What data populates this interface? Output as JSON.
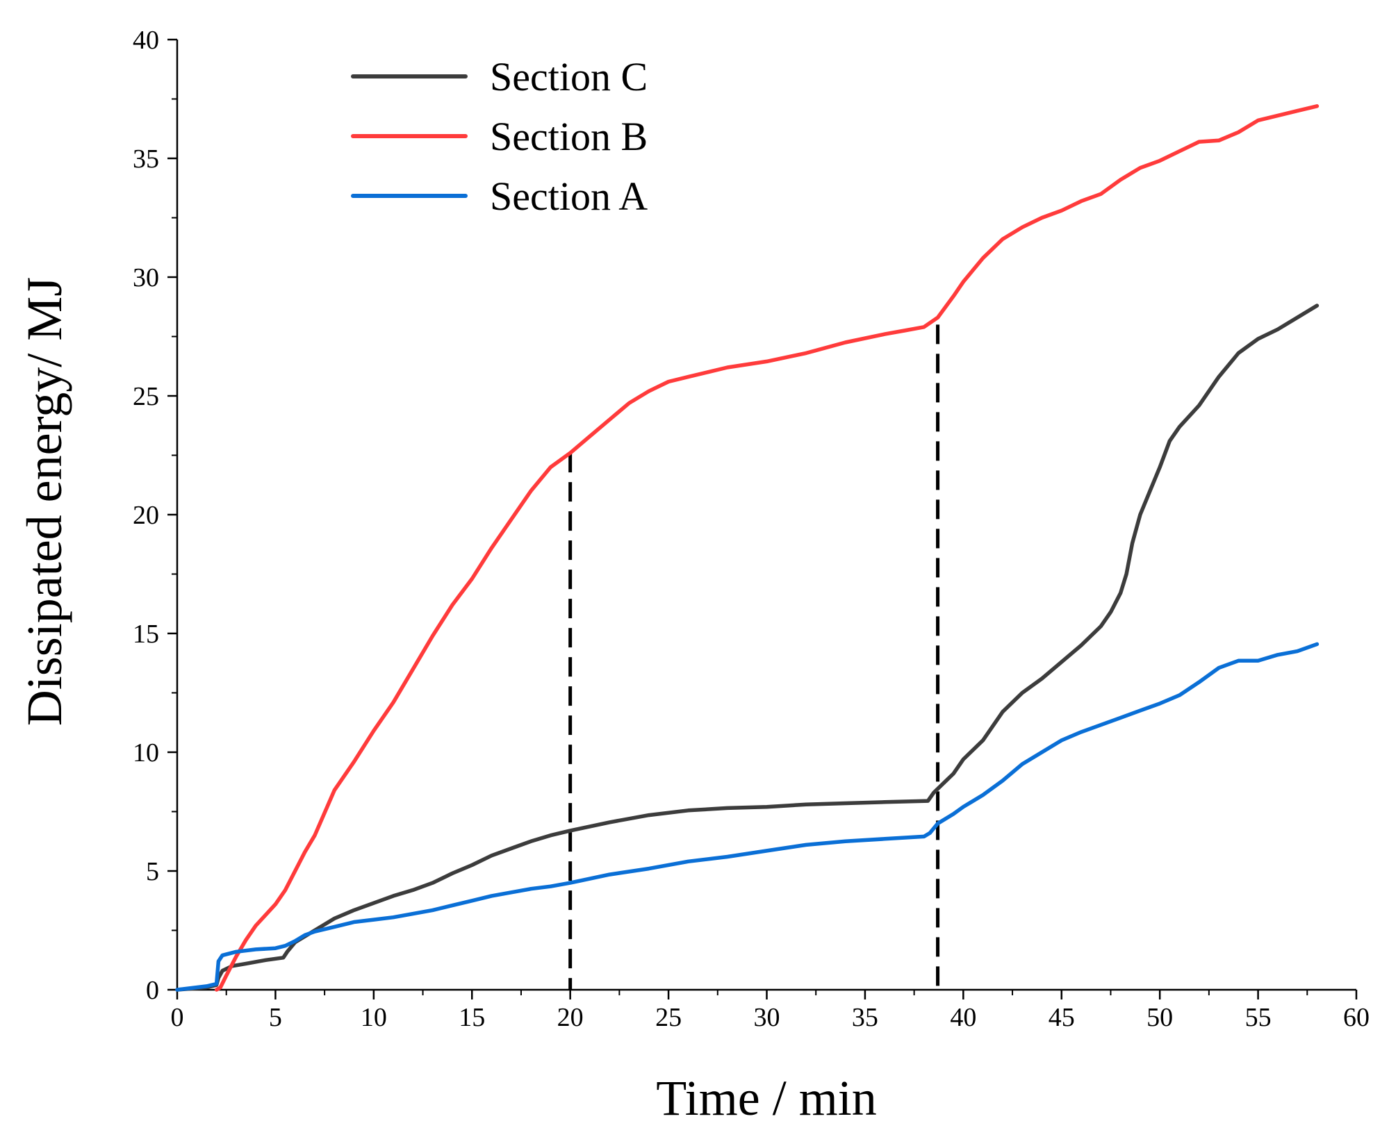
{
  "chart_data": {
    "type": "line",
    "title": "",
    "xlabel": "Time / min",
    "ylabel": "Dissipated energy/ MJ",
    "xlim": [
      0,
      60
    ],
    "ylim": [
      0,
      40
    ],
    "xticks": [
      0,
      5,
      10,
      15,
      20,
      25,
      30,
      35,
      40,
      45,
      50,
      55,
      60
    ],
    "yticks": [
      0,
      5,
      10,
      15,
      20,
      25,
      30,
      35,
      40
    ],
    "xtick_labels": [
      "0",
      "5",
      "10",
      "15",
      "20",
      "25",
      "30",
      "35",
      "40",
      "45",
      "50",
      "55",
      "60"
    ],
    "ytick_labels": [
      "0",
      "5",
      "10",
      "15",
      "20",
      "25",
      "30",
      "35",
      "40"
    ],
    "grid": false,
    "legend_position": "top-left",
    "vertical_markers": [
      {
        "x": 20,
        "y_top": 22.6,
        "style": "dashed"
      },
      {
        "x": 38.7,
        "y_top": 28.0,
        "style": "dashed"
      }
    ],
    "series": [
      {
        "name": "Section C",
        "color": "#3c3c3c",
        "x": [
          0,
          1.5,
          2.0,
          2.1,
          2.3,
          2.8,
          3.5,
          4.5,
          5.4,
          5.6,
          6.0,
          7.0,
          8.0,
          9.0,
          10.0,
          11.0,
          12.0,
          13.0,
          14.0,
          15.0,
          16.0,
          17.0,
          18.0,
          19.0,
          20.0,
          22.0,
          24.0,
          26.0,
          28.0,
          30.0,
          32.0,
          34.0,
          36.0,
          38.2,
          38.5,
          39.0,
          39.5,
          40.0,
          41.0,
          42.0,
          43.0,
          44.0,
          45.0,
          46.0,
          47.0,
          47.5,
          48.0,
          48.3,
          48.6,
          49.0,
          49.5,
          50.0,
          50.5,
          51.0,
          52.0,
          53.0,
          54.0,
          55.0,
          56.0,
          57.0,
          58.0
        ],
        "values": [
          0,
          0.1,
          0.2,
          0.5,
          0.8,
          1.0,
          1.1,
          1.25,
          1.35,
          1.6,
          2.0,
          2.5,
          3.0,
          3.35,
          3.65,
          3.95,
          4.2,
          4.5,
          4.9,
          5.25,
          5.65,
          5.95,
          6.25,
          6.5,
          6.7,
          7.05,
          7.35,
          7.55,
          7.65,
          7.7,
          7.8,
          7.85,
          7.9,
          7.95,
          8.3,
          8.7,
          9.1,
          9.7,
          10.5,
          11.7,
          12.5,
          13.1,
          13.8,
          14.5,
          15.3,
          15.9,
          16.7,
          17.5,
          18.8,
          20.0,
          21.0,
          22.0,
          23.1,
          23.7,
          24.6,
          25.8,
          26.8,
          27.4,
          27.8,
          28.3,
          28.8
        ]
      },
      {
        "name": "Section B",
        "color": "#ff3b3b",
        "x": [
          2.0,
          2.2,
          2.5,
          3.0,
          3.5,
          4.0,
          5.0,
          5.5,
          6.0,
          6.5,
          7.0,
          8.0,
          9.0,
          10.0,
          11.0,
          12.0,
          13.0,
          14.0,
          15.0,
          16.0,
          17.0,
          18.0,
          19.0,
          20.0,
          21.0,
          22.0,
          23.0,
          24.0,
          25.0,
          26.0,
          27.0,
          28.0,
          30.0,
          32.0,
          34.0,
          36.0,
          37.0,
          38.0,
          38.7,
          39.5,
          40.0,
          41.0,
          42.0,
          43.0,
          44.0,
          45.0,
          46.0,
          47.0,
          48.0,
          49.0,
          50.0,
          51.0,
          52.0,
          53.0,
          54.0,
          55.0,
          56.0,
          57.0,
          58.0
        ],
        "values": [
          0,
          0.1,
          0.6,
          1.4,
          2.1,
          2.7,
          3.6,
          4.2,
          5.0,
          5.8,
          6.5,
          8.4,
          9.6,
          10.9,
          12.1,
          13.5,
          14.9,
          16.2,
          17.3,
          18.6,
          19.8,
          21.0,
          22.0,
          22.6,
          23.3,
          24.0,
          24.7,
          25.2,
          25.6,
          25.8,
          26.0,
          26.2,
          26.45,
          26.8,
          27.25,
          27.6,
          27.75,
          27.9,
          28.3,
          29.2,
          29.8,
          30.8,
          31.6,
          32.1,
          32.5,
          32.8,
          33.2,
          33.5,
          34.1,
          34.6,
          34.9,
          35.3,
          35.7,
          35.75,
          36.1,
          36.6,
          36.8,
          37.0,
          37.2
        ]
      },
      {
        "name": "Section A",
        "color": "#0a6fd6",
        "x": [
          0,
          1.5,
          2.0,
          2.1,
          2.3,
          3.0,
          4.0,
          5.0,
          5.5,
          6.0,
          6.5,
          7.0,
          8.0,
          9.0,
          10.0,
          11.0,
          12.0,
          13.0,
          14.0,
          15.0,
          16.0,
          17.0,
          18.0,
          19.0,
          20.0,
          22.0,
          24.0,
          26.0,
          28.0,
          30.0,
          32.0,
          34.0,
          36.0,
          38.0,
          38.3,
          38.7,
          39.5,
          40.0,
          41.0,
          42.0,
          43.0,
          44.0,
          45.0,
          46.0,
          47.0,
          48.0,
          49.0,
          50.0,
          51.0,
          52.0,
          53.0,
          54.0,
          55.0,
          56.0,
          57.0,
          58.0
        ],
        "values": [
          0,
          0.15,
          0.25,
          1.2,
          1.45,
          1.6,
          1.7,
          1.75,
          1.85,
          2.05,
          2.3,
          2.45,
          2.65,
          2.85,
          2.95,
          3.05,
          3.2,
          3.35,
          3.55,
          3.75,
          3.95,
          4.1,
          4.25,
          4.35,
          4.5,
          4.85,
          5.1,
          5.4,
          5.6,
          5.85,
          6.1,
          6.25,
          6.35,
          6.45,
          6.6,
          7.0,
          7.4,
          7.7,
          8.2,
          8.8,
          9.5,
          10.0,
          10.5,
          10.85,
          11.15,
          11.45,
          11.75,
          12.05,
          12.4,
          12.95,
          13.55,
          13.85,
          13.85,
          14.1,
          14.25,
          14.55
        ]
      }
    ]
  }
}
